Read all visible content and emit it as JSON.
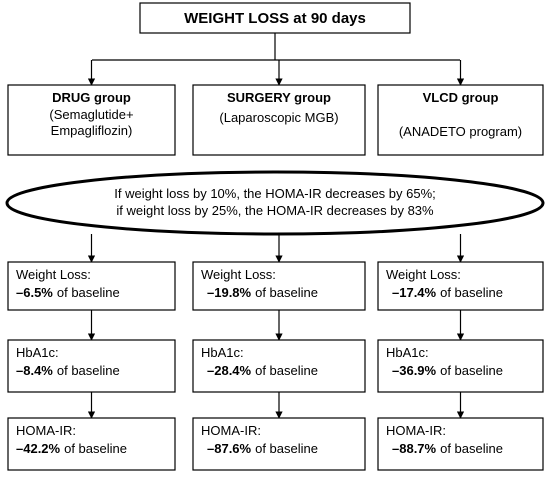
{
  "title": "WEIGHT LOSS at 90 days",
  "groups": [
    {
      "name": "DRUG group",
      "detail": [
        "(Semaglutide+",
        "Empagliflozin)"
      ]
    },
    {
      "name": "SURGERY group",
      "detail": [
        "(Laparoscopic MGB)"
      ]
    },
    {
      "name": "VLCD group",
      "detail": [
        "(ANADETO program)"
      ]
    }
  ],
  "ellipse": [
    "If weight loss by 10%, the HOMA-IR decreases by 65%;",
    "if weight loss by 25%, the HOMA-IR decreases by 83%"
  ],
  "results": [
    [
      {
        "metric": "Weight Loss:",
        "value": "–6.5%",
        "suffix": "of baseline"
      },
      {
        "metric": "HbA1c:",
        "value": "–8.4%",
        "suffix": "of baseline"
      },
      {
        "metric": "HOMA-IR:",
        "value": "–42.2%",
        "suffix": "of baseline"
      }
    ],
    [
      {
        "metric": "Weight Loss:",
        "value": "–19.8%",
        "suffix": "of baseline"
      },
      {
        "metric": "HbA1c:",
        "value": "–28.4%",
        "suffix": "of baseline"
      },
      {
        "metric": "HOMA-IR:",
        "value": "–87.6%",
        "suffix": "of baseline"
      }
    ],
    [
      {
        "metric": "Weight Loss:",
        "value": "–17.4%",
        "suffix": "of baseline"
      },
      {
        "metric": "HbA1c:",
        "value": "–36.9%",
        "suffix": "of baseline"
      },
      {
        "metric": "HOMA-IR:",
        "value": "–88.7%",
        "suffix": "of baseline"
      }
    ]
  ]
}
